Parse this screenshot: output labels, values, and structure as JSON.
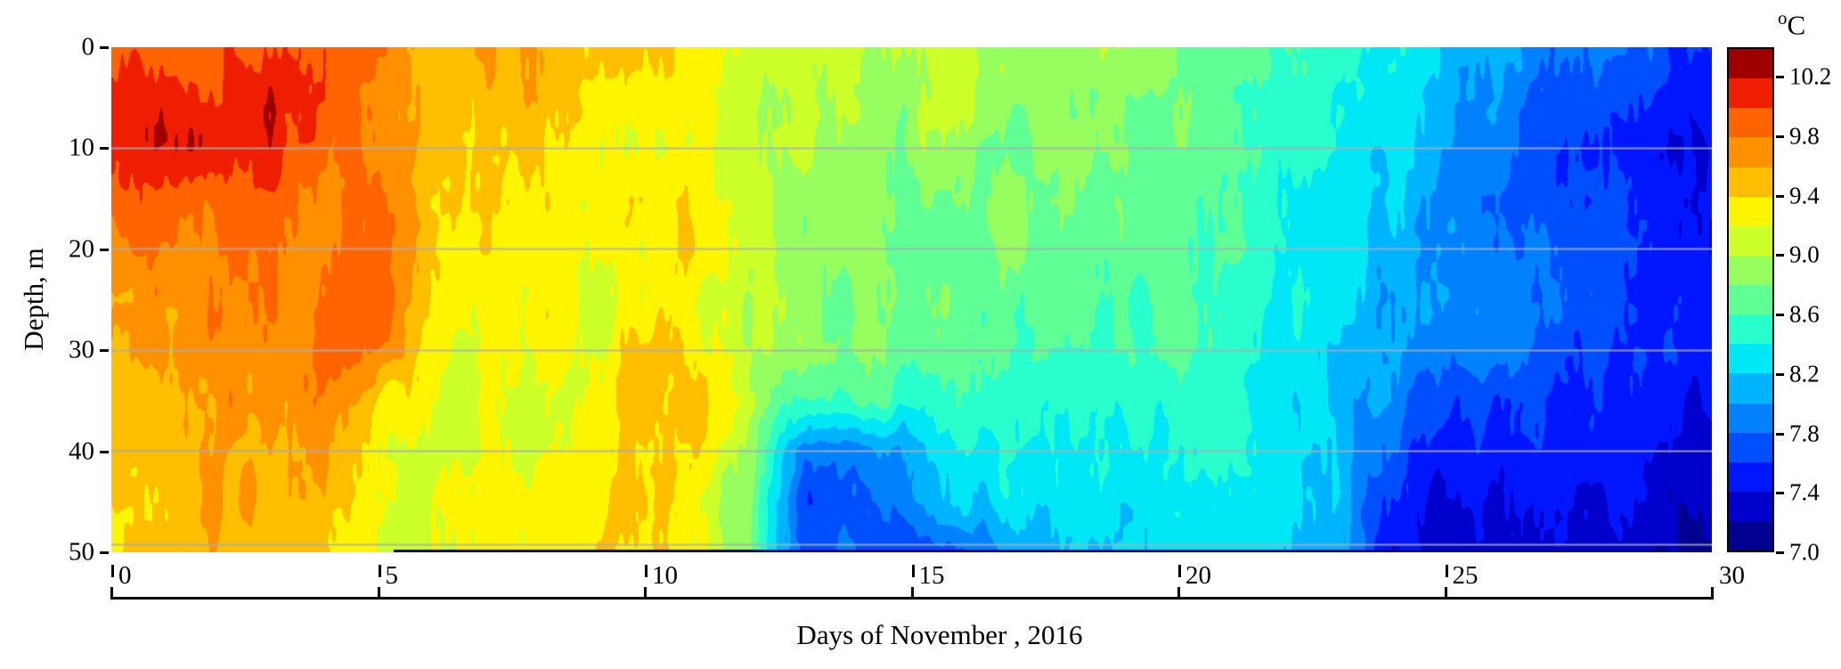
{
  "axes": {
    "y_ticks": [
      0,
      10,
      20,
      30,
      40,
      50
    ],
    "x_ticks": [
      0,
      5,
      10,
      15,
      20,
      25,
      30
    ],
    "colorbar_tick_labels": [
      "10.2",
      "9.8",
      "9.4",
      "9.0",
      "8.6",
      "8.2",
      "7.8",
      "7.4",
      "7.0"
    ],
    "unit_sup": "o",
    "unit_base": "C"
  },
  "chart_data": {
    "type": "heatmap",
    "title": "",
    "xlabel": "Days of November , 2016",
    "ylabel": "Depth, m",
    "series_unit": "°C",
    "xlim": [
      0,
      30
    ],
    "ylim": [
      0,
      50
    ],
    "y_inverted": true,
    "x_days": [
      0,
      1,
      2,
      3,
      4,
      5,
      6,
      7,
      8,
      9,
      10,
      11,
      12,
      13,
      14,
      15,
      16,
      17,
      18,
      19,
      20,
      21,
      22,
      23,
      24,
      25,
      26,
      27,
      28,
      29,
      30
    ],
    "y_depths": [
      0,
      5,
      10,
      15,
      20,
      25,
      30,
      35,
      40,
      45,
      50
    ],
    "temperature_grid": [
      [
        10.0,
        10.0,
        9.9,
        10.0,
        9.9,
        9.7,
        9.6,
        9.6,
        9.5,
        9.5,
        9.4,
        9.3,
        9.2,
        9.1,
        9.0,
        9.0,
        9.0,
        8.9,
        8.9,
        8.9,
        8.8,
        8.8,
        8.6,
        8.5,
        8.4,
        8.2,
        8.0,
        7.9,
        7.8,
        7.7,
        7.6
      ],
      [
        10.1,
        10.1,
        10.0,
        10.2,
        10.0,
        9.7,
        9.6,
        9.5,
        9.6,
        9.4,
        9.3,
        9.3,
        9.1,
        9.0,
        9.0,
        8.9,
        9.1,
        8.9,
        8.8,
        8.8,
        8.8,
        8.7,
        8.5,
        8.4,
        8.3,
        8.1,
        7.9,
        7.8,
        7.7,
        7.6,
        7.5
      ],
      [
        10.0,
        10.1,
        10.2,
        10.1,
        9.9,
        9.8,
        9.5,
        9.5,
        9.5,
        9.3,
        9.3,
        9.2,
        9.1,
        9.0,
        8.9,
        8.9,
        8.9,
        8.8,
        8.9,
        8.8,
        8.7,
        8.7,
        8.5,
        8.4,
        8.2,
        8.0,
        7.9,
        7.7,
        7.6,
        7.5,
        7.4
      ],
      [
        9.9,
        9.9,
        9.9,
        9.9,
        9.8,
        9.9,
        9.4,
        9.4,
        9.4,
        9.3,
        9.4,
        9.3,
        9.0,
        8.9,
        8.9,
        8.8,
        8.8,
        8.8,
        8.8,
        8.7,
        8.7,
        8.6,
        8.4,
        8.3,
        8.2,
        7.9,
        7.8,
        7.7,
        7.6,
        7.5,
        7.4
      ],
      [
        9.7,
        9.8,
        9.8,
        9.8,
        9.8,
        9.9,
        9.4,
        9.3,
        9.3,
        9.3,
        9.2,
        9.4,
        9.0,
        8.9,
        8.8,
        8.8,
        8.7,
        8.8,
        8.7,
        8.7,
        8.6,
        8.6,
        8.4,
        8.3,
        8.1,
        7.9,
        7.9,
        7.8,
        7.6,
        7.5,
        7.4
      ],
      [
        9.6,
        9.7,
        9.7,
        9.8,
        9.8,
        9.9,
        9.3,
        9.3,
        9.3,
        9.2,
        9.3,
        9.2,
        9.0,
        8.9,
        8.8,
        8.8,
        8.8,
        8.7,
        8.7,
        8.6,
        8.6,
        8.5,
        8.4,
        8.3,
        8.0,
        7.9,
        7.9,
        7.8,
        7.7,
        7.6,
        7.5
      ],
      [
        9.6,
        9.7,
        9.7,
        9.7,
        9.9,
        9.8,
        9.2,
        9.2,
        9.3,
        9.2,
        9.5,
        9.3,
        9.0,
        8.9,
        8.8,
        8.7,
        8.7,
        8.6,
        8.6,
        8.6,
        8.6,
        8.5,
        8.3,
        8.2,
        8.0,
        7.8,
        7.9,
        7.7,
        7.6,
        7.6,
        7.5
      ],
      [
        9.5,
        9.6,
        9.7,
        9.7,
        9.8,
        9.4,
        9.2,
        9.2,
        9.2,
        9.3,
        9.5,
        9.5,
        9.0,
        8.5,
        8.6,
        8.5,
        8.5,
        8.5,
        8.5,
        8.5,
        8.5,
        8.4,
        8.3,
        8.2,
        7.9,
        7.6,
        7.6,
        7.6,
        7.5,
        7.5,
        7.4
      ],
      [
        9.5,
        9.6,
        9.6,
        9.6,
        9.7,
        9.2,
        9.1,
        9.2,
        9.2,
        9.4,
        9.4,
        9.4,
        8.9,
        7.9,
        7.8,
        8.1,
        8.3,
        8.4,
        8.4,
        8.4,
        8.4,
        8.4,
        8.3,
        8.2,
        7.7,
        7.5,
        7.5,
        7.5,
        7.5,
        7.4,
        7.3
      ],
      [
        9.5,
        9.5,
        9.6,
        9.6,
        9.6,
        9.1,
        9.2,
        9.3,
        9.3,
        9.4,
        9.5,
        9.2,
        8.8,
        7.7,
        7.7,
        7.9,
        8.2,
        8.3,
        8.3,
        8.3,
        8.4,
        8.3,
        8.3,
        8.2,
        7.5,
        7.4,
        7.4,
        7.4,
        7.4,
        7.3,
        7.2
      ],
      [
        9.4,
        9.5,
        9.5,
        9.5,
        9.5,
        9.1,
        9.2,
        9.3,
        9.3,
        9.4,
        9.4,
        9.2,
        8.8,
        7.7,
        7.8,
        7.6,
        7.8,
        8.0,
        8.2,
        8.2,
        8.3,
        8.3,
        8.2,
        8.1,
        7.4,
        7.3,
        7.3,
        7.3,
        7.3,
        7.2,
        7.1
      ]
    ],
    "colorbar": {
      "vmin": 7.0,
      "vmax": 10.4,
      "band_step": 0.2,
      "ticks": [
        7.0,
        7.4,
        7.8,
        8.2,
        8.6,
        9.0,
        9.4,
        9.8,
        10.2
      ],
      "band_colors": [
        "#000091",
        "#0000cd",
        "#0016ff",
        "#004fff",
        "#0082ff",
        "#00b4ff",
        "#00e8f5",
        "#28ffcd",
        "#5fff96",
        "#96ff5f",
        "#cdff28",
        "#fff500",
        "#ffbe00",
        "#ff9000",
        "#ff6400",
        "#f01e00",
        "#9e0000"
      ]
    },
    "gridline_depths": [
      10,
      20,
      30,
      40,
      49.3
    ],
    "gridline_color": "#a9aeb6",
    "bottom_strip": {
      "start_day": 5.3,
      "temp": 7.1
    }
  }
}
